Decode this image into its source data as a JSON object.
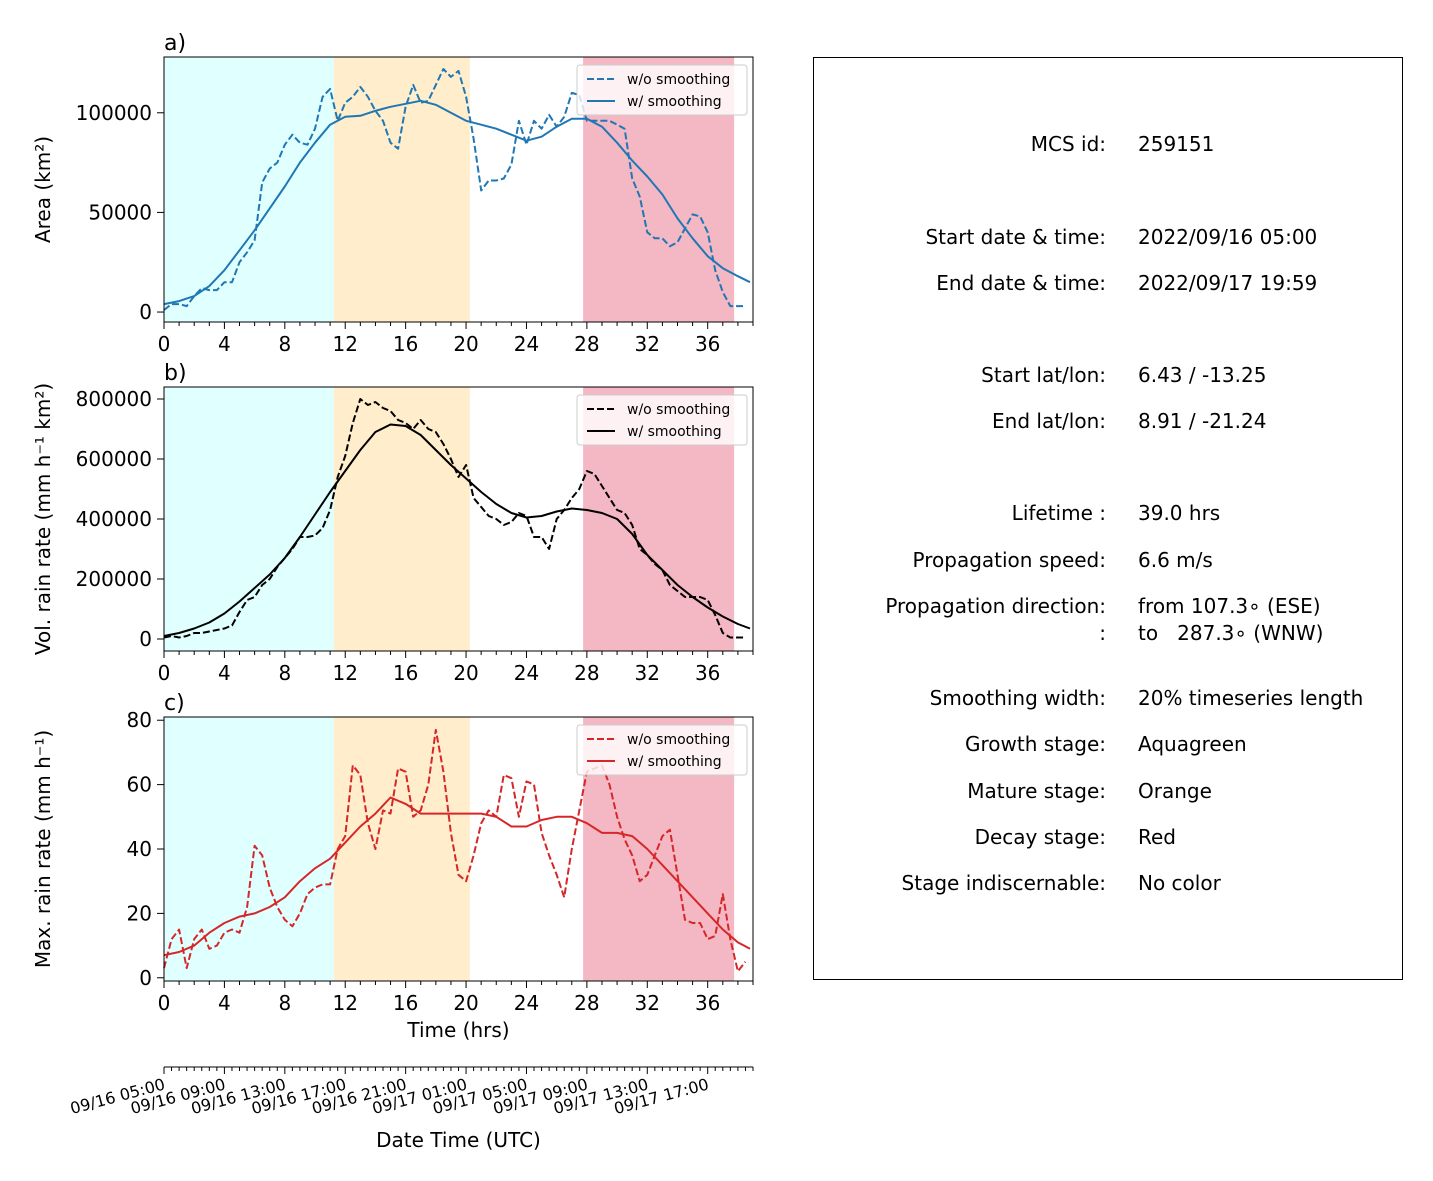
{
  "stage_colors": {
    "growth": "#e0ffff",
    "mature": "#ffedcc",
    "decay": "#f4b7c4"
  },
  "stages": {
    "growth": [
      0,
      11.25
    ],
    "mature": [
      11.25,
      20.25
    ],
    "decay": [
      27.75,
      37.75
    ]
  },
  "chart_data": [
    {
      "type": "line",
      "panel_label": "a)",
      "ylabel": "Area  (km²)",
      "xlim": [
        0,
        39
      ],
      "ylim": [
        -5000,
        128000
      ],
      "yticks": [
        0,
        50000,
        100000
      ],
      "xticks": [
        0,
        4,
        8,
        12,
        16,
        20,
        24,
        28,
        32,
        36
      ],
      "color": "#1f77b4",
      "legend": [
        "w/o smoothing",
        "w/ smoothing"
      ],
      "legend_loc": "upper right",
      "series": [
        {
          "name": "w/o smoothing",
          "style": "dashed",
          "x": [
            0,
            0.5,
            1,
            1.5,
            2,
            2.5,
            3,
            3.5,
            4,
            4.5,
            5,
            5.5,
            6,
            6.5,
            7,
            7.5,
            8,
            8.5,
            9,
            9.5,
            10,
            10.5,
            11,
            11.5,
            12,
            12.5,
            13,
            13.5,
            14,
            14.5,
            15,
            15.5,
            16,
            16.5,
            17,
            17.5,
            18,
            18.5,
            19,
            19.5,
            20,
            20.5,
            21,
            21.5,
            22,
            22.5,
            23,
            23.5,
            24,
            24.5,
            25,
            25.5,
            26,
            26.5,
            27,
            27.5,
            28,
            28.5,
            29,
            29.5,
            30,
            30.5,
            31,
            31.5,
            32,
            32.5,
            33,
            33.5,
            34,
            34.5,
            35,
            35.5,
            36,
            36.5,
            37,
            37.5,
            38,
            38.5
          ],
          "values": [
            1000,
            4000,
            4000,
            3000,
            8000,
            12000,
            11000,
            11000,
            15000,
            15000,
            25000,
            30000,
            36000,
            65000,
            72000,
            75000,
            84000,
            89000,
            85000,
            84000,
            92000,
            108000,
            112000,
            96000,
            105000,
            108000,
            113000,
            108000,
            101000,
            96000,
            85000,
            82000,
            103000,
            114000,
            105000,
            106000,
            114000,
            122000,
            118000,
            121000,
            108000,
            87000,
            61000,
            66000,
            66000,
            67000,
            74000,
            96000,
            84000,
            96000,
            92000,
            99000,
            93000,
            98000,
            110000,
            109000,
            96000,
            96000,
            96000,
            96000,
            94000,
            92000,
            67000,
            58000,
            40000,
            37000,
            37000,
            33000,
            35000,
            42000,
            49000,
            48000,
            40000,
            21000,
            10000,
            3000,
            3000,
            3000
          ]
        },
        {
          "name": "w/ smoothing",
          "style": "solid",
          "x": [
            0,
            1,
            2,
            3,
            4,
            5,
            6,
            7,
            8,
            9,
            10,
            11,
            12,
            13,
            14,
            15,
            16,
            17,
            18,
            19,
            20,
            21,
            22,
            23,
            24,
            25,
            26,
            27,
            28,
            29,
            30,
            31,
            32,
            33,
            34,
            35,
            36,
            37,
            38,
            38.8
          ],
          "values": [
            4000,
            5500,
            8000,
            13000,
            21000,
            31000,
            41000,
            52000,
            63000,
            75000,
            85000,
            94000,
            98000,
            98500,
            101000,
            103000,
            104500,
            106000,
            104000,
            100000,
            96000,
            94000,
            92000,
            89000,
            86000,
            88000,
            93000,
            97000,
            97000,
            93000,
            85000,
            76000,
            68000,
            59000,
            47000,
            37000,
            28000,
            22000,
            18000,
            15000
          ]
        }
      ]
    },
    {
      "type": "line",
      "panel_label": "b)",
      "ylabel": "Vol. rain rate (mm h⁻¹ km²)",
      "xlim": [
        0,
        39
      ],
      "ylim": [
        -40000,
        840000
      ],
      "yticks": [
        0,
        200000,
        400000,
        600000,
        800000
      ],
      "xticks": [
        0,
        4,
        8,
        12,
        16,
        20,
        24,
        28,
        32,
        36
      ],
      "color": "#000000",
      "legend": [
        "w/o smoothing",
        "w/ smoothing"
      ],
      "legend_loc": "upper right",
      "series": [
        {
          "name": "w/o smoothing",
          "style": "dashed",
          "x": [
            0,
            0.5,
            1,
            1.5,
            2,
            2.5,
            3,
            3.5,
            4,
            4.5,
            5,
            5.5,
            6,
            6.5,
            7,
            7.5,
            8,
            8.5,
            9,
            9.5,
            10,
            10.5,
            11,
            11.5,
            12,
            12.5,
            13,
            13.5,
            14,
            14.5,
            15,
            15.5,
            16,
            16.5,
            17,
            17.5,
            18,
            18.5,
            19,
            19.5,
            20,
            20.5,
            21,
            21.5,
            22,
            22.5,
            23,
            23.5,
            24,
            24.5,
            25,
            25.5,
            26,
            26.5,
            27,
            27.5,
            28,
            28.5,
            29,
            29.5,
            30,
            30.5,
            31,
            31.5,
            32,
            32.5,
            33,
            33.5,
            34,
            34.5,
            35,
            35.5,
            36,
            36.5,
            37,
            37.5,
            38,
            38.5
          ],
          "values": [
            5000,
            10000,
            5000,
            10000,
            20000,
            20000,
            25000,
            30000,
            35000,
            45000,
            90000,
            130000,
            140000,
            180000,
            200000,
            240000,
            270000,
            300000,
            340000,
            340000,
            345000,
            370000,
            430000,
            540000,
            610000,
            720000,
            800000,
            780000,
            790000,
            770000,
            760000,
            730000,
            720000,
            700000,
            730000,
            700000,
            690000,
            650000,
            600000,
            540000,
            580000,
            470000,
            440000,
            410000,
            400000,
            380000,
            390000,
            420000,
            410000,
            340000,
            340000,
            300000,
            400000,
            430000,
            470000,
            500000,
            560000,
            550000,
            510000,
            470000,
            430000,
            420000,
            380000,
            300000,
            280000,
            250000,
            230000,
            180000,
            160000,
            140000,
            140000,
            140000,
            130000,
            80000,
            20000,
            5000,
            5000,
            5000
          ]
        },
        {
          "name": "w/ smoothing",
          "style": "solid",
          "x": [
            0,
            1,
            2,
            3,
            4,
            5,
            6,
            7,
            8,
            9,
            10,
            11,
            12,
            13,
            14,
            15,
            16,
            17,
            18,
            19,
            20,
            21,
            22,
            23,
            24,
            25,
            26,
            27,
            28,
            29,
            30,
            31,
            32,
            33,
            34,
            35,
            36,
            37,
            38,
            38.8
          ],
          "values": [
            10000,
            20000,
            35000,
            55000,
            85000,
            125000,
            170000,
            215000,
            270000,
            340000,
            415000,
            490000,
            560000,
            630000,
            690000,
            715000,
            710000,
            680000,
            630000,
            580000,
            535000,
            490000,
            450000,
            420000,
            405000,
            410000,
            425000,
            435000,
            430000,
            420000,
            400000,
            350000,
            280000,
            230000,
            180000,
            140000,
            105000,
            75000,
            50000,
            35000
          ]
        }
      ]
    },
    {
      "type": "line",
      "panel_label": "c)",
      "ylabel": "Max. rain rate  (mm h⁻¹)",
      "xlabel": "Time (hrs)",
      "xlim": [
        0,
        39
      ],
      "ylim": [
        -1,
        81
      ],
      "yticks": [
        0,
        20,
        40,
        60,
        80
      ],
      "xticks": [
        0,
        4,
        8,
        12,
        16,
        20,
        24,
        28,
        32,
        36
      ],
      "color": "#d62728",
      "legend": [
        "w/o smoothing",
        "w/ smoothing"
      ],
      "legend_loc": "upper right",
      "series": [
        {
          "name": "w/o smoothing",
          "style": "dashed",
          "x": [
            0,
            0.5,
            1,
            1.5,
            2,
            2.5,
            3,
            3.5,
            4,
            4.5,
            5,
            5.5,
            6,
            6.5,
            7,
            7.5,
            8,
            8.5,
            9,
            9.5,
            10,
            10.5,
            11,
            11.5,
            12,
            12.5,
            13,
            13.5,
            14,
            14.5,
            15,
            15.5,
            16,
            16.5,
            17,
            17.5,
            18,
            18.5,
            19,
            19.5,
            20,
            20.5,
            21,
            21.5,
            22,
            22.5,
            23,
            23.5,
            24,
            24.5,
            25,
            25.5,
            26,
            26.5,
            27,
            27.5,
            28,
            28.5,
            29,
            29.5,
            30,
            30.5,
            31,
            31.5,
            32,
            32.5,
            33,
            33.5,
            34,
            34.5,
            35,
            35.5,
            36,
            36.5,
            37,
            37.5,
            38,
            38.5
          ],
          "values": [
            3,
            12,
            15,
            3,
            12,
            15,
            9,
            10,
            14,
            15,
            14,
            22,
            41,
            38,
            28,
            22,
            18,
            16,
            20,
            26,
            28,
            29,
            29,
            40,
            44,
            66,
            63,
            48,
            40,
            52,
            51,
            65,
            64,
            50,
            52,
            60,
            77,
            64,
            45,
            32,
            30,
            38,
            48,
            52,
            50,
            63,
            62,
            50,
            61,
            60,
            45,
            38,
            32,
            25,
            40,
            52,
            64,
            65,
            66,
            60,
            50,
            43,
            38,
            30,
            32,
            38,
            44,
            46,
            32,
            18,
            17,
            17,
            12,
            13,
            26,
            12,
            2,
            5
          ]
        },
        {
          "name": "w/ smoothing",
          "style": "solid",
          "x": [
            0,
            1,
            2,
            3,
            4,
            5,
            6,
            7,
            8,
            9,
            10,
            11,
            12,
            13,
            14,
            15,
            16,
            17,
            18,
            19,
            20,
            21,
            22,
            23,
            24,
            25,
            26,
            27,
            28,
            29,
            30,
            31,
            32,
            33,
            34,
            35,
            36,
            37,
            38,
            38.8
          ],
          "values": [
            7,
            8,
            10,
            14,
            17,
            19,
            20,
            22,
            25,
            30,
            34,
            37,
            42,
            47,
            51,
            56,
            54,
            51,
            51,
            51,
            51,
            51,
            50,
            47,
            47,
            49,
            50,
            50,
            48,
            45,
            45,
            44,
            40,
            35,
            30,
            25,
            20,
            15,
            11,
            9
          ]
        }
      ]
    }
  ],
  "date_axis": {
    "xlabel": "Date Time (UTC)",
    "tick_labels": [
      "09/16 05:00",
      "09/16 09:00",
      "09/16 13:00",
      "09/16 17:00",
      "09/16 21:00",
      "09/17 01:00",
      "09/17 05:00",
      "09/17 09:00",
      "09/17 13:00",
      "09/17 17:00"
    ]
  },
  "info": {
    "mcs_id_key": "MCS id:",
    "mcs_id_val": "259151",
    "start_dt_key": "Start date & time:",
    "start_dt_val": "2022/09/16 05:00",
    "end_dt_key": "End date & time:",
    "end_dt_val": "2022/09/17 19:59",
    "start_latlon_key": "Start lat/lon:",
    "start_latlon_val": "6.43 / -13.25",
    "end_latlon_key": "End lat/lon:",
    "end_latlon_val": "8.91 / -21.24",
    "lifetime_key": "Lifetime :",
    "lifetime_val": "39.0 hrs",
    "prop_speed_key": "Propagation speed:",
    "prop_speed_val": "6.6 m/s",
    "prop_dir_key": "Propagation direction:",
    "prop_dir_val": "from 107.3∘ (ESE)",
    "prop_dir2_key": ":",
    "prop_dir2_val": "to   287.3∘ (WNW)",
    "smoothing_key": "Smoothing width:",
    "smoothing_val": "20% timeseries length",
    "growth_key": "Growth stage:",
    "growth_val": "Aquagreen",
    "mature_key": "Mature stage:",
    "mature_val": "Orange",
    "decay_key": "Decay stage:",
    "decay_val": "Red",
    "indisc_key": "Stage indiscernable:",
    "indisc_val": "No color"
  }
}
